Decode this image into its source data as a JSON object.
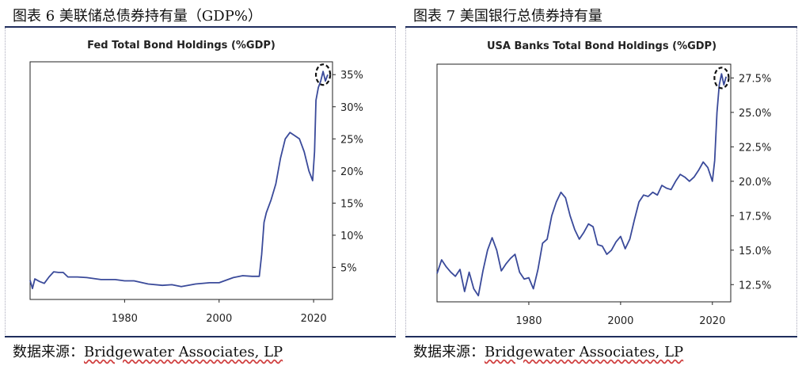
{
  "panels": [
    {
      "caption": "图表 6 美联储总债券持有量（GDP%）",
      "source_prefix": "数据来源：",
      "source_name": "Bridgewater Associates, LP"
    },
    {
      "caption": "图表 7 美国银行总债券持有量",
      "source_prefix": "数据来源：",
      "source_name": "Bridgewater Associates, LP"
    }
  ],
  "chart_data": [
    {
      "type": "line",
      "title": "Fed Total Bond Holdings (%GDP)",
      "xlim": [
        1960,
        2024
      ],
      "ylim": [
        0,
        37
      ],
      "x_ticks": [
        1980,
        2000,
        2020
      ],
      "y_ticks": [
        5,
        10,
        15,
        20,
        25,
        30,
        35
      ],
      "y_tick_labels": [
        "5%",
        "10%",
        "15%",
        "20%",
        "25%",
        "30%",
        "35%"
      ],
      "grid": false,
      "highlight": {
        "x": 2022,
        "y": 35
      },
      "series": [
        {
          "color": "#3a4a9a",
          "x": [
            1960,
            1960.5,
            1961,
            1962,
            1963,
            1964,
            1965,
            1966,
            1967,
            1968,
            1970,
            1972,
            1975,
            1978,
            1980,
            1982,
            1985,
            1988,
            1990,
            1992,
            1995,
            1998,
            2000,
            2003,
            2005,
            2007,
            2008.5,
            2009,
            2009.5,
            2010,
            2011,
            2012,
            2013,
            2014,
            2015,
            2016,
            2017,
            2018,
            2019,
            2019.8,
            2020.2,
            2020.5,
            2021,
            2021.5,
            2022,
            2022.5,
            2023
          ],
          "y": [
            3,
            1.7,
            3.2,
            2.8,
            2.5,
            3.5,
            4.3,
            4.2,
            4.2,
            3.5,
            3.5,
            3.4,
            3.1,
            3.1,
            2.9,
            2.9,
            2.4,
            2.2,
            2.3,
            2.0,
            2.4,
            2.6,
            2.6,
            3.4,
            3.7,
            3.6,
            3.6,
            7.0,
            12.0,
            13.5,
            15.5,
            18.0,
            22.0,
            25.0,
            26.0,
            25.5,
            25.0,
            23.0,
            20.0,
            18.5,
            23.0,
            31.0,
            33.0,
            34.0,
            35.5,
            34.0,
            35.0
          ]
        }
      ]
    },
    {
      "type": "line",
      "title": "USA Banks Total Bond Holdings (%GDP)",
      "xlim": [
        1960,
        2024
      ],
      "ylim": [
        11.25,
        28.5
      ],
      "x_ticks": [
        1980,
        2000,
        2020
      ],
      "y_ticks": [
        12.5,
        15,
        17.5,
        20,
        22.5,
        25,
        27.5
      ],
      "y_tick_labels": [
        "12.5%",
        "15.0%",
        "17.5%",
        "20.0%",
        "22.5%",
        "25.0%",
        "27.5%"
      ],
      "grid": false,
      "highlight": {
        "x": 2022,
        "y": 27.5
      },
      "series": [
        {
          "color": "#3a4a9a",
          "x": [
            1960,
            1961,
            1962,
            1963,
            1964,
            1965,
            1966,
            1967,
            1968,
            1969,
            1970,
            1971,
            1972,
            1973,
            1974,
            1975,
            1976,
            1977,
            1978,
            1979,
            1980,
            1981,
            1982,
            1983,
            1984,
            1985,
            1986,
            1987,
            1988,
            1989,
            1990,
            1991,
            1992,
            1993,
            1994,
            1995,
            1996,
            1997,
            1998,
            1999,
            2000,
            2001,
            2002,
            2003,
            2004,
            2005,
            2006,
            2007,
            2008,
            2009,
            2010,
            2011,
            2012,
            2013,
            2014,
            2015,
            2016,
            2017,
            2018,
            2019,
            2020,
            2020.5,
            2021,
            2021.5,
            2022,
            2022.5,
            2023
          ],
          "y": [
            13.3,
            14.3,
            13.8,
            13.4,
            13.1,
            13.6,
            12.0,
            13.4,
            12.2,
            11.7,
            13.5,
            15.0,
            15.9,
            15.0,
            13.5,
            14.0,
            14.4,
            14.7,
            13.4,
            12.9,
            13.0,
            12.2,
            13.6,
            15.5,
            15.8,
            17.5,
            18.5,
            19.2,
            18.8,
            17.5,
            16.5,
            15.8,
            16.3,
            16.9,
            16.7,
            15.4,
            15.3,
            14.7,
            15.0,
            15.6,
            16.0,
            15.1,
            15.8,
            17.2,
            18.5,
            19.0,
            18.9,
            19.2,
            19.0,
            19.7,
            19.5,
            19.4,
            20.0,
            20.5,
            20.3,
            20.0,
            20.3,
            20.8,
            21.4,
            21.0,
            20.0,
            21.5,
            25.0,
            27.0,
            27.8,
            27.0,
            27.6
          ]
        }
      ]
    }
  ]
}
